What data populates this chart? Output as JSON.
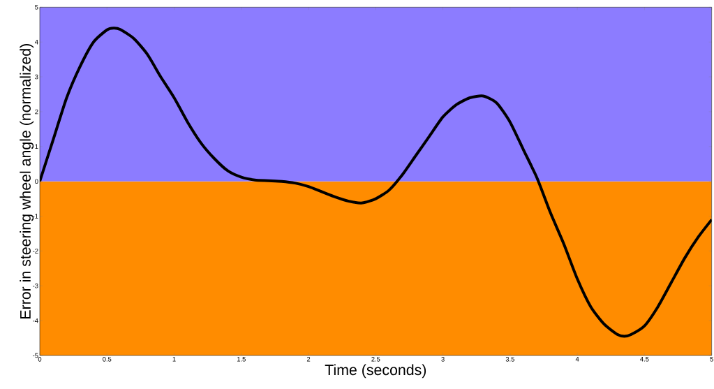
{
  "chart_data": {
    "type": "line",
    "xlabel": "Time (seconds)",
    "ylabel": "Error in steering wheel angle (normalized)",
    "x": [
      0,
      0.1,
      0.2,
      0.3,
      0.4,
      0.5,
      0.55,
      0.6,
      0.7,
      0.8,
      0.9,
      1.0,
      1.1,
      1.2,
      1.3,
      1.4,
      1.5,
      1.6,
      1.7,
      1.8,
      1.9,
      2.0,
      2.1,
      2.2,
      2.3,
      2.4,
      2.5,
      2.6,
      2.7,
      2.8,
      2.9,
      3.0,
      3.1,
      3.2,
      3.3,
      3.4,
      3.5,
      3.6,
      3.7,
      3.8,
      3.9,
      4.0,
      4.1,
      4.2,
      4.3,
      4.35,
      4.4,
      4.5,
      4.6,
      4.7,
      4.8,
      4.9,
      5.0
    ],
    "series": [
      {
        "color": "#000000",
        "values": [
          0,
          1.2,
          2.4,
          3.3,
          4.0,
          4.35,
          4.4,
          4.36,
          4.1,
          3.65,
          3.0,
          2.4,
          1.7,
          1.1,
          0.65,
          0.3,
          0.12,
          0.04,
          0.02,
          0.0,
          -0.05,
          -0.15,
          -0.3,
          -0.45,
          -0.57,
          -0.62,
          -0.5,
          -0.25,
          0.2,
          0.75,
          1.3,
          1.85,
          2.2,
          2.4,
          2.45,
          2.25,
          1.7,
          0.9,
          0.1,
          -0.9,
          -1.8,
          -2.8,
          -3.6,
          -4.1,
          -4.4,
          -4.45,
          -4.4,
          -4.15,
          -3.6,
          -2.9,
          -2.2,
          -1.6,
          -1.1
        ]
      }
    ],
    "xlim": [
      0,
      5
    ],
    "ylim": [
      -5,
      5
    ],
    "xticks": [
      0,
      0.5,
      1,
      1.5,
      2,
      2.5,
      3,
      3.5,
      4,
      4.5,
      5
    ],
    "yticks": [
      -5,
      -4,
      -3,
      -2,
      -1,
      0,
      1,
      2,
      3,
      4,
      5
    ],
    "bands": [
      {
        "axis": "y",
        "from": 0,
        "to": 5,
        "color": "#8c7cff"
      },
      {
        "axis": "y",
        "from": -5,
        "to": 0,
        "color": "#ff8c00"
      }
    ]
  }
}
